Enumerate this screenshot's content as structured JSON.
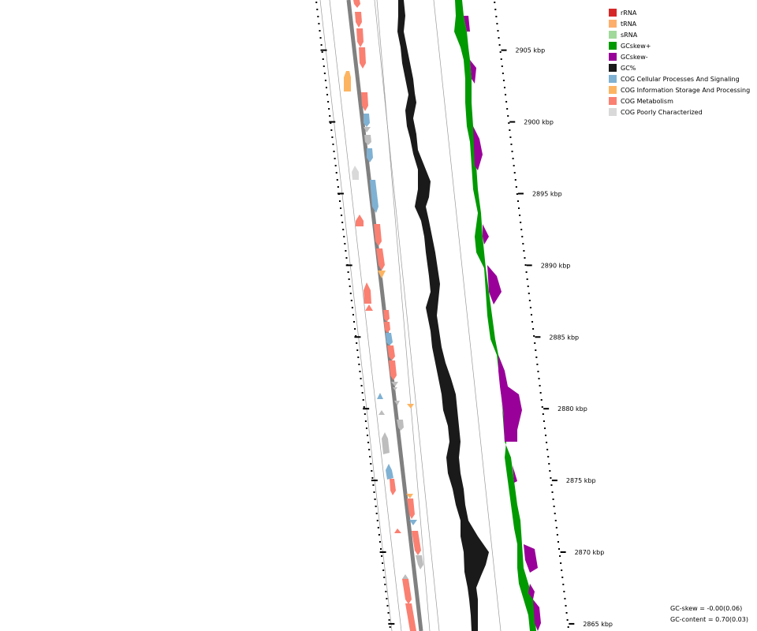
{
  "legend": [
    {
      "label": "rRNA",
      "color": "#d62728"
    },
    {
      "label": "tRNA",
      "color": "#fdae6b"
    },
    {
      "label": "sRNA",
      "color": "#a1d99b"
    },
    {
      "label": "GCskew+",
      "color": "#009900"
    },
    {
      "label": "GCskew-",
      "color": "#990099"
    },
    {
      "label": "GC%",
      "color": "#1a1a1a"
    },
    {
      "label": "COG Cellular Processes And Signaling",
      "color": "#7fb1d3"
    },
    {
      "label": "COG Information Storage And Processing",
      "color": "#fdb462"
    },
    {
      "label": "COG Metabolism",
      "color": "#fa8072"
    },
    {
      "label": "COG Poorly Characterized",
      "color": "#d9d9d9"
    }
  ],
  "ticks": [
    {
      "kbp": 2905,
      "label": "2905 kbp"
    },
    {
      "kbp": 2900,
      "label": "2900 kbp"
    },
    {
      "kbp": 2895,
      "label": "2895 kbp"
    },
    {
      "kbp": 2890,
      "label": "2890 kbp"
    },
    {
      "kbp": 2885,
      "label": "2885 kbp"
    },
    {
      "kbp": 2880,
      "label": "2880 kbp"
    },
    {
      "kbp": 2875,
      "label": "2875 kbp"
    },
    {
      "kbp": 2870,
      "label": "2870 kbp"
    },
    {
      "kbp": 2865,
      "label": "2865 kbp"
    }
  ],
  "stats": {
    "gc_skew": "GC-skew = -0.00(0.06)",
    "gc_content": "GC-content = 0.70(0.03)"
  }
}
